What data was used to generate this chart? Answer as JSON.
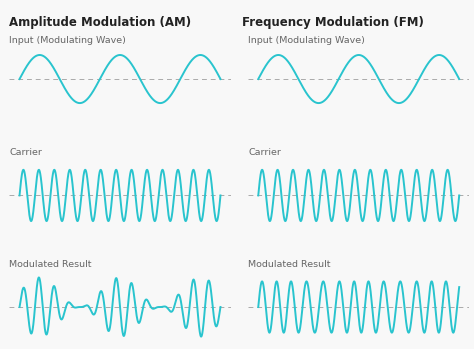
{
  "background_color": "#f8f8f8",
  "wave_color": "#29C4CE",
  "dash_color": "#aaaaaa",
  "title_left": "Amplitude Modulation (AM)",
  "title_right": "Frequency Modulation (FM)",
  "label_input": "Input (Modulating Wave)",
  "label_carrier": "Carrier",
  "label_modulated": "Modulated Result",
  "title_fontsize": 8.5,
  "label_fontsize": 6.8,
  "wave_linewidth": 1.4,
  "dash_linewidth": 0.7,
  "n_mod_cycles": 2.5,
  "n_carrier_cycles": 13,
  "n_fm_max_cycles": 22,
  "n_fm_min_cycles": 8
}
